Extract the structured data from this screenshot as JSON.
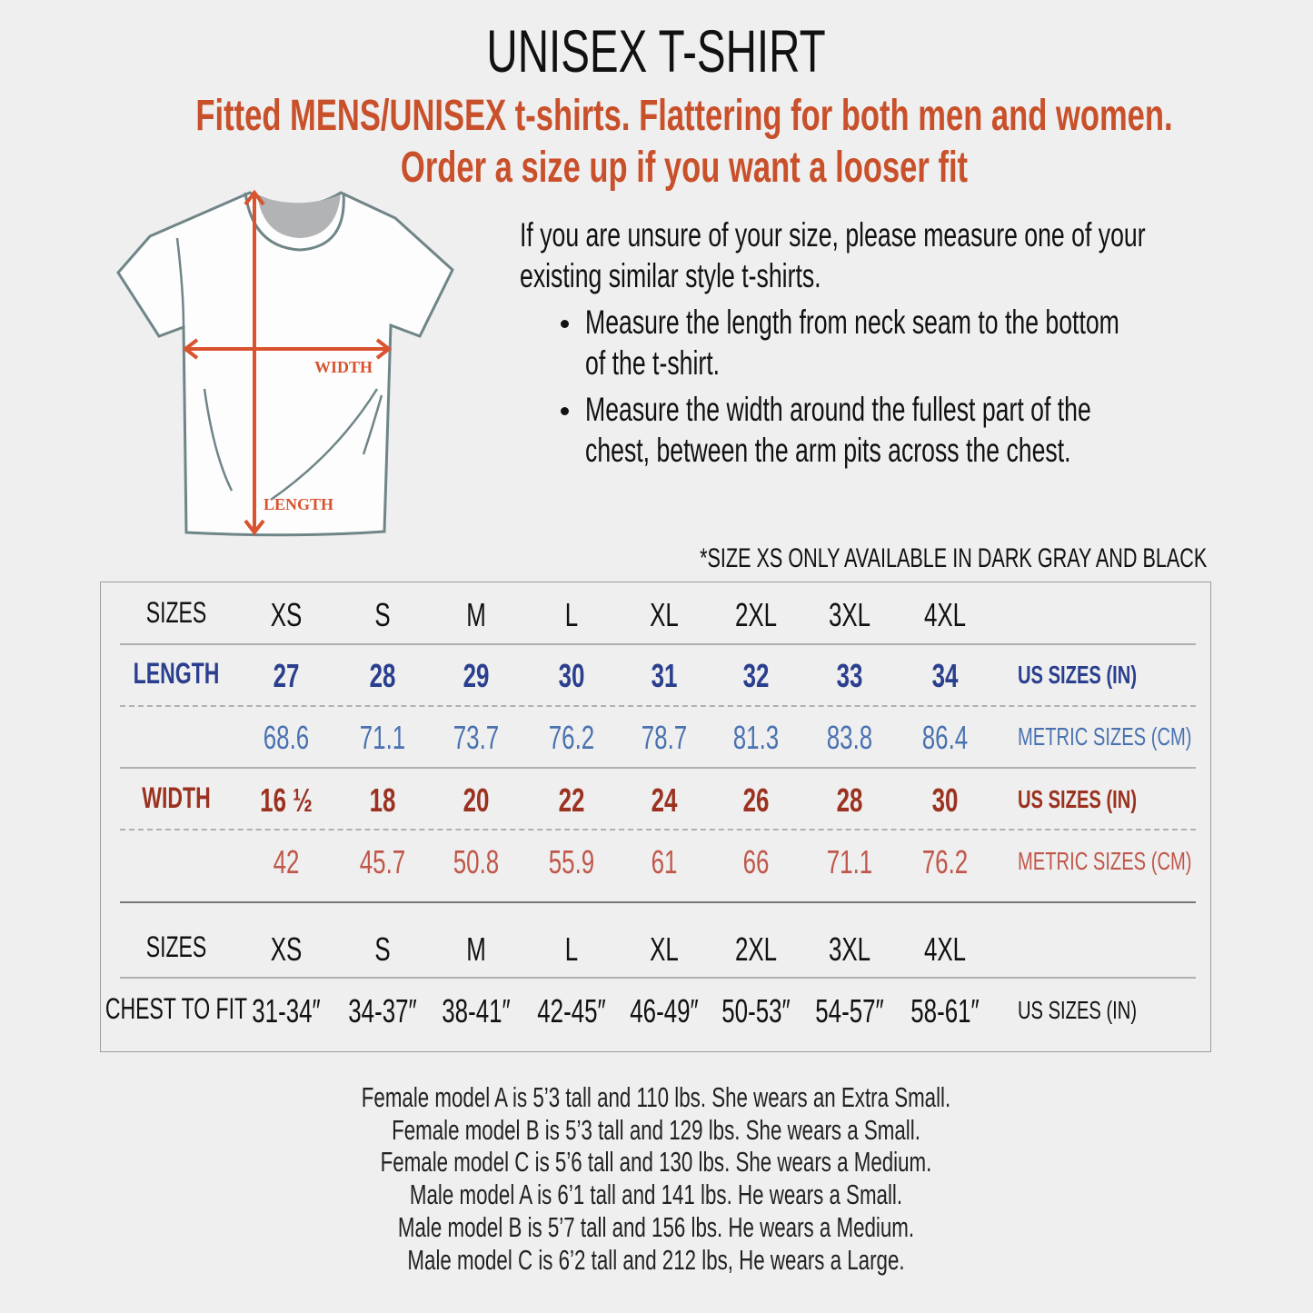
{
  "title": "UNISEX T-SHIRT",
  "subtitle_lines": [
    "Fitted MENS/UNISEX t-shirts. Flattering for both men and women.",
    "Order a size up if you want a looser fit"
  ],
  "diagram": {
    "width_label": "WIDTH",
    "length_label": "LENGTH"
  },
  "instructions": {
    "intro_lines": [
      "If you are unsure of your size, please measure one of your",
      "existing similar style t-shirts."
    ],
    "bullets": [
      [
        "Measure the length from neck seam to the bottom",
        "of the t-shirt."
      ],
      [
        "Measure the width around the fullest part of the",
        "chest, between the arm pits across the chest."
      ]
    ]
  },
  "note": "*SIZE XS ONLY AVAILABLE IN DARK GRAY AND BLACK",
  "colors": {
    "accent": "#c8502a",
    "length": "#2b3f8f",
    "length_metric": "#4a72b0",
    "width": "#9b3220",
    "width_metric": "#c0574a"
  },
  "table": {
    "header": {
      "label": "SIZES",
      "sizes": [
        "XS",
        "S",
        "M",
        "L",
        "XL",
        "2XL",
        "3XL",
        "4XL"
      ]
    },
    "length_us": {
      "label": "LENGTH",
      "values": [
        "27",
        "28",
        "29",
        "30",
        "31",
        "32",
        "33",
        "34"
      ],
      "unit": "US SIZES (IN)"
    },
    "length_metric": {
      "label": "",
      "values": [
        "68.6",
        "71.1",
        "73.7",
        "76.2",
        "78.7",
        "81.3",
        "83.8",
        "86.4"
      ],
      "unit": "METRIC SIZES (CM)"
    },
    "width_us": {
      "label": "WIDTH",
      "values": [
        "16 ½",
        "18",
        "20",
        "22",
        "24",
        "26",
        "28",
        "30"
      ],
      "unit": "US SIZES (IN)"
    },
    "width_metric": {
      "label": "",
      "values": [
        "42",
        "45.7",
        "50.8",
        "55.9",
        "61",
        "66",
        "71.1",
        "76.2"
      ],
      "unit": "METRIC SIZES (CM)"
    },
    "header2": {
      "label": "SIZES",
      "sizes": [
        "XS",
        "S",
        "M",
        "L",
        "XL",
        "2XL",
        "3XL",
        "4XL"
      ]
    },
    "chest": {
      "label": "CHEST TO FIT",
      "values": [
        "31-34″",
        "34-37″",
        "38-41″",
        "42-45″",
        "46-49″",
        "50-53″",
        "54-57″",
        "58-61″"
      ],
      "unit": "US SIZES (IN)"
    }
  },
  "models": [
    "Female model A is 5’3 tall and 110 lbs. She wears an Extra Small.",
    "Female model B is 5’3 tall and 129 lbs. She wears a Small.",
    "Female model C is 5’6 tall and 130 lbs. She wears a Medium.",
    "Male model A is 6’1 tall and 141 lbs. He wears a Small.",
    "Male model B is 5’7 tall and 156 lbs. He wears a Medium.",
    "Male model C is 6’2 tall and 212 lbs, He wears a Large."
  ]
}
